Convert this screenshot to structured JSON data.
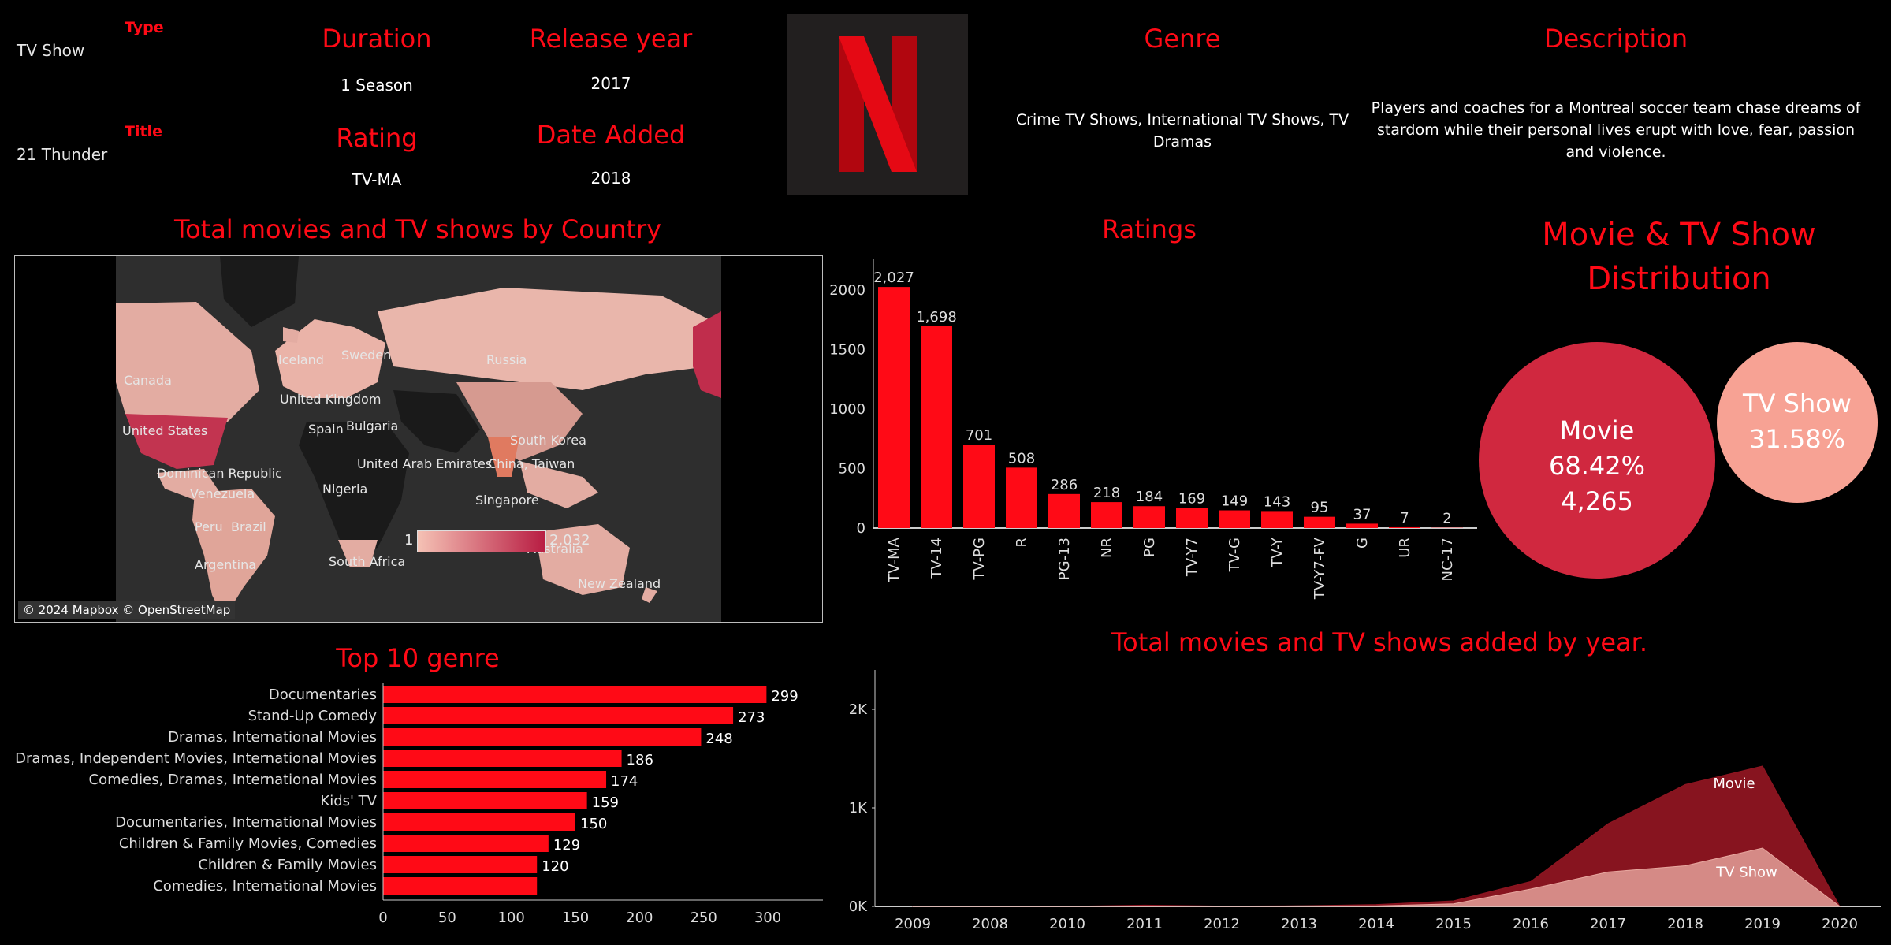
{
  "header": {
    "type_label": "Type",
    "type_value": "TV Show",
    "title_label": "Title",
    "title_value": "21 Thunder",
    "duration_label": "Duration",
    "duration_value": "1 Season",
    "release_label": "Release year",
    "release_value": "2017",
    "rating_label": "Rating",
    "rating_value": "TV-MA",
    "date_added_label": "Date Added",
    "date_added_value": "2018",
    "genre_label": "Genre",
    "genre_value": "Crime TV Shows, International TV Shows, TV Dramas",
    "description_label": "Description",
    "description_value": "Players and coaches for a Montreal soccer team chase dreams of stardom while their personal lives erupt with love, fear, passion and violence.",
    "logo_icon": "netflix-logo-icon"
  },
  "map": {
    "title": "Total movies and TV shows by Country",
    "legend_min": "1",
    "legend_max": "2,032",
    "attribution": "© 2024 Mapbox © OpenStreetMap",
    "labels": [
      "Canada",
      "United States",
      "Iceland",
      "Sweden",
      "United Kingdom",
      "Spain",
      "Bulgaria",
      "Russia",
      "South Korea",
      "United Arab Emirates",
      "China, Taiwan",
      "Dominican Republic",
      "Venezuela",
      "Nigeria",
      "Singapore",
      "Peru",
      "Brazil",
      "Argentina",
      "South Africa",
      "Australia",
      "New Zealand"
    ]
  },
  "pie": {
    "title": "Movie & TV Show Distribution",
    "movie_label": "Movie",
    "movie_pct": "68.42%",
    "movie_count": "4,265",
    "tv_label": "TV Show",
    "tv_pct": "31.58%"
  },
  "colors": {
    "accent": "#ff0a16",
    "movie_area": "#8e1521",
    "tv_area": "#e8a8a0",
    "movie_bubble": "#d0283f",
    "tv_bubble": "#f7a294"
  },
  "chart_data": [
    {
      "type": "bar",
      "title": "Ratings",
      "categories": [
        "TV-MA",
        "TV-14",
        "TV-PG",
        "R",
        "PG-13",
        "NR",
        "PG",
        "TV-Y7",
        "TV-G",
        "TV-Y",
        "TV-Y7-FV",
        "G",
        "UR",
        "NC-17"
      ],
      "values": [
        2027,
        1698,
        701,
        508,
        286,
        218,
        184,
        169,
        149,
        143,
        95,
        37,
        7,
        2
      ],
      "value_labels": [
        "2,027",
        "1,698",
        "701",
        "508",
        "286",
        "218",
        "184",
        "169",
        "149",
        "143",
        "95",
        "37",
        "7",
        "2"
      ],
      "yticks": [
        "0",
        "500",
        "1000",
        "1500",
        "2000"
      ],
      "ylim": [
        0,
        2200
      ]
    },
    {
      "type": "bar",
      "orientation": "horizontal",
      "title": "Top 10 genre",
      "categories": [
        "Documentaries",
        "Stand-Up Comedy",
        "Dramas, International Movies",
        "Dramas, Independent Movies, International Movies",
        "Comedies, Dramas, International Movies",
        "Kids' TV",
        "Documentaries, International Movies",
        "Children & Family Movies, Comedies",
        "Children & Family Movies",
        "Comedies, International Movies"
      ],
      "values": [
        299,
        273,
        248,
        186,
        174,
        159,
        150,
        129,
        120,
        120
      ],
      "value_labels": [
        "299",
        "273",
        "248",
        "186",
        "174",
        "159",
        "150",
        "129",
        "120",
        ""
      ],
      "xticks": [
        "0",
        "50",
        "100",
        "150",
        "200",
        "250",
        "300"
      ],
      "xlim": [
        0,
        340
      ]
    },
    {
      "type": "area",
      "title": "Total movies and TV shows added by year.",
      "x": [
        "2009",
        "2008",
        "2010",
        "2011",
        "2012",
        "2013",
        "2014",
        "2015",
        "2016",
        "2017",
        "2018",
        "2019",
        "2020"
      ],
      "series": [
        {
          "name": "Movie",
          "values": [
            2,
            1,
            1,
            13,
            3,
            6,
            19,
            56,
            253,
            839,
            1237,
            1424,
            0
          ]
        },
        {
          "name": "TV Show",
          "values": [
            0,
            1,
            0,
            0,
            0,
            5,
            5,
            26,
            176,
            349,
            412,
            592,
            0
          ]
        }
      ],
      "yticks": [
        "0K",
        "1K",
        "2K"
      ],
      "ylim": [
        0,
        2400
      ]
    }
  ]
}
